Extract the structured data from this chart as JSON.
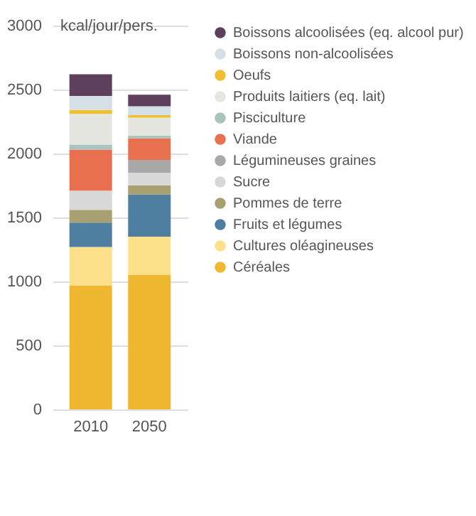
{
  "chart_data": {
    "type": "bar",
    "stacked": true,
    "ylabel": "kcal/jour/pers.",
    "categories": [
      "2010",
      "2050"
    ],
    "ylim": [
      0,
      3000
    ],
    "yticks": [
      0,
      500,
      1000,
      1500,
      2000,
      2500,
      3000
    ],
    "grid": "y",
    "legend": "right",
    "series": [
      {
        "name": "Céréales",
        "color": "#f0b730",
        "values": [
          970,
          1050
        ]
      },
      {
        "name": "Cultures oléagineuses",
        "color": "#fde08a",
        "values": [
          300,
          300
        ]
      },
      {
        "name": "Fruits et légumes",
        "color": "#4f7fa0",
        "values": [
          190,
          330
        ]
      },
      {
        "name": "Pommes de terre",
        "color": "#a8a070",
        "values": [
          100,
          70
        ]
      },
      {
        "name": "Sucre",
        "color": "#d8d8d8",
        "values": [
          150,
          100
        ]
      },
      {
        "name": "Légumineuses graines",
        "color": "#a8a8a8",
        "values": [
          0,
          100
        ]
      },
      {
        "name": "Viande",
        "color": "#e8704f",
        "values": [
          320,
          170
        ]
      },
      {
        "name": "Pisciculture",
        "color": "#a8c4c0",
        "values": [
          40,
          20
        ]
      },
      {
        "name": "Produits laitiers (eq. lait)",
        "color": "#e6e6e0",
        "values": [
          240,
          140
        ]
      },
      {
        "name": "Oeufs",
        "color": "#f0c030",
        "values": [
          30,
          20
        ]
      },
      {
        "name": "Boissons non-alcoolisées",
        "color": "#d5e0e6",
        "values": [
          110,
          70
        ]
      },
      {
        "name": "Boissons alcoolisées (eq. alcool pur)",
        "color": "#5e3f5c",
        "values": [
          170,
          90
        ]
      }
    ]
  }
}
